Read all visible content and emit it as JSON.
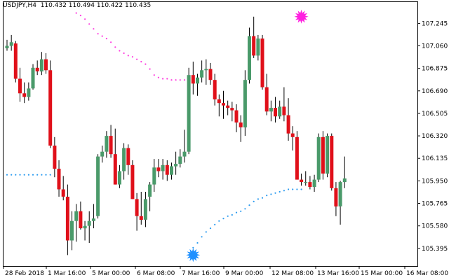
{
  "header": {
    "symbol": "USDJPY,H4",
    "open": "110.432",
    "high": "110.494",
    "low": "110.422",
    "close": "110.435"
  },
  "colors": {
    "background": "#ffffff",
    "axis": "#000000",
    "bull_body": "#4a9a6a",
    "bear_body": "#e0101a",
    "upper_channel": "#ff3ce0",
    "lower_channel": "#2d9cf0",
    "upper_marker": "#ff20e0",
    "lower_marker": "#1e90ff"
  },
  "icons": {
    "upper_marker": "star-burst-icon",
    "lower_marker": "star-burst-icon"
  },
  "chart_data": {
    "type": "candlestick",
    "symbol": "USDJPY",
    "timeframe": "H4",
    "ylim": [
      105.25,
      107.42
    ],
    "y_ticks": [
      "107.245",
      "107.060",
      "106.875",
      "106.690",
      "106.505",
      "106.320",
      "106.135",
      "105.950",
      "105.765",
      "105.580",
      "105.395"
    ],
    "x_tick_labels": [
      "28 Feb 2018",
      "1 Mar 16:00",
      "5 Mar 00:00",
      "6 Mar 08:00",
      "7 Mar 16:00",
      "9 Mar 00:00",
      "12 Mar 08:00",
      "13 Mar 16:00",
      "15 Mar 00:00",
      "16 Mar 08:00"
    ],
    "candles": [
      [
        107.04,
        107.11,
        107.02,
        107.06
      ],
      [
        107.06,
        107.15,
        107.02,
        107.09
      ],
      [
        107.08,
        107.1,
        106.76,
        106.79
      ],
      [
        106.79,
        106.88,
        106.6,
        106.67
      ],
      [
        106.67,
        106.76,
        106.59,
        106.64
      ],
      [
        106.64,
        106.76,
        106.61,
        106.71
      ],
      [
        106.71,
        106.91,
        106.7,
        106.88
      ],
      [
        106.88,
        106.94,
        106.82,
        106.85
      ],
      [
        106.85,
        107.01,
        106.82,
        106.95
      ],
      [
        106.95,
        107.0,
        106.83,
        106.86
      ],
      [
        106.86,
        106.94,
        106.22,
        106.24
      ],
      [
        106.24,
        106.31,
        105.98,
        106.05
      ],
      [
        106.05,
        106.12,
        105.82,
        105.88
      ],
      [
        105.88,
        105.99,
        105.79,
        105.82
      ],
      [
        105.82,
        105.92,
        105.34,
        105.46
      ],
      [
        105.46,
        105.7,
        105.38,
        105.62
      ],
      [
        105.62,
        105.76,
        105.45,
        105.7
      ],
      [
        105.7,
        105.78,
        105.55,
        105.56
      ],
      [
        105.56,
        105.62,
        105.46,
        105.58
      ],
      [
        105.58,
        105.7,
        105.44,
        105.62
      ],
      [
        105.62,
        105.76,
        105.56,
        105.64
      ],
      [
        105.66,
        106.17,
        105.64,
        106.15
      ],
      [
        106.15,
        106.24,
        106.1,
        106.19
      ],
      [
        106.19,
        106.36,
        106.14,
        106.32
      ],
      [
        106.32,
        106.41,
        106.14,
        106.17
      ],
      [
        106.17,
        106.38,
        105.92,
        105.92
      ],
      [
        105.92,
        106.08,
        105.89,
        106.03
      ],
      [
        106.03,
        106.26,
        105.96,
        106.22
      ],
      [
        106.22,
        106.25,
        106.0,
        106.08
      ],
      [
        106.08,
        106.12,
        105.8,
        105.8
      ],
      [
        105.8,
        105.85,
        105.54,
        105.66
      ],
      [
        105.66,
        105.86,
        105.59,
        105.63
      ],
      [
        105.63,
        105.86,
        105.57,
        105.8
      ],
      [
        105.82,
        105.94,
        105.7,
        105.92
      ],
      [
        105.92,
        106.13,
        105.86,
        106.06
      ],
      [
        106.06,
        106.13,
        105.98,
        106.03
      ],
      [
        106.03,
        106.13,
        105.96,
        106.08
      ],
      [
        106.08,
        106.12,
        105.95,
        106.0
      ],
      [
        106.0,
        106.1,
        105.96,
        106.07
      ],
      [
        106.07,
        106.19,
        106.0,
        106.09
      ],
      [
        106.09,
        106.21,
        106.06,
        106.15
      ],
      [
        106.15,
        106.37,
        106.1,
        106.19
      ],
      [
        106.19,
        106.88,
        106.17,
        106.82
      ],
      [
        106.82,
        106.93,
        106.66,
        106.75
      ],
      [
        106.75,
        106.83,
        106.65,
        106.8
      ],
      [
        106.8,
        106.94,
        106.76,
        106.86
      ],
      [
        106.86,
        106.95,
        106.74,
        106.87
      ],
      [
        106.87,
        106.92,
        106.74,
        106.78
      ],
      [
        106.78,
        106.83,
        106.57,
        106.62
      ],
      [
        106.62,
        106.66,
        106.48,
        106.59
      ],
      [
        106.59,
        106.69,
        106.46,
        106.57
      ],
      [
        106.57,
        106.61,
        106.49,
        106.55
      ],
      [
        106.55,
        106.6,
        106.44,
        106.53
      ],
      [
        106.53,
        106.58,
        106.35,
        106.43
      ],
      [
        106.43,
        106.49,
        106.27,
        106.39
      ],
      [
        106.39,
        106.86,
        106.32,
        106.78
      ],
      [
        106.78,
        107.21,
        106.75,
        107.14
      ],
      [
        107.14,
        107.3,
        106.96,
        106.98
      ],
      [
        106.98,
        107.15,
        106.94,
        107.12
      ],
      [
        107.12,
        107.15,
        106.7,
        106.72
      ],
      [
        106.72,
        106.83,
        106.49,
        106.52
      ],
      [
        106.52,
        106.61,
        106.44,
        106.55
      ],
      [
        106.55,
        106.64,
        106.43,
        106.48
      ],
      [
        106.48,
        106.61,
        106.46,
        106.56
      ],
      [
        106.56,
        106.72,
        106.44,
        106.49
      ],
      [
        106.49,
        106.63,
        106.28,
        106.34
      ],
      [
        106.34,
        106.4,
        106.2,
        106.31
      ],
      [
        106.31,
        106.36,
        105.96,
        105.96
      ],
      [
        105.96,
        106.01,
        105.91,
        105.94
      ],
      [
        105.94,
        106.03,
        105.91,
        105.94
      ],
      [
        105.94,
        105.99,
        105.88,
        105.9
      ],
      [
        105.9,
        106.0,
        105.86,
        105.96
      ],
      [
        105.96,
        106.34,
        105.94,
        106.31
      ],
      [
        106.31,
        106.36,
        105.96,
        106.01
      ],
      [
        106.01,
        106.34,
        105.98,
        106.32
      ],
      [
        106.32,
        106.34,
        105.87,
        105.89
      ],
      [
        105.89,
        105.94,
        105.66,
        105.74
      ],
      [
        105.74,
        105.95,
        105.59,
        105.94
      ],
      [
        105.94,
        106.15,
        105.89,
        105.97
      ]
    ],
    "upper_channel": [
      [
        16,
        107.33
      ],
      [
        17,
        107.31
      ],
      [
        18,
        107.28
      ],
      [
        19,
        107.24
      ],
      [
        20,
        107.2
      ],
      [
        21,
        107.16
      ],
      [
        22,
        107.14
      ],
      [
        23,
        107.12
      ],
      [
        24,
        107.09
      ],
      [
        25,
        107.05
      ],
      [
        26,
        107.02
      ],
      [
        27,
        107.0
      ],
      [
        28,
        106.98
      ],
      [
        29,
        106.97
      ],
      [
        30,
        106.95
      ],
      [
        31,
        106.93
      ],
      [
        32,
        106.91
      ],
      [
        33,
        106.87
      ],
      [
        34,
        106.82
      ],
      [
        35,
        106.8
      ],
      [
        36,
        106.79
      ],
      [
        37,
        106.79
      ],
      [
        38,
        106.78
      ],
      [
        39,
        106.78
      ],
      [
        40,
        106.78
      ],
      [
        41,
        106.78
      ],
      [
        42,
        106.78
      ]
    ],
    "lower_channel": [
      [
        0,
        106.0
      ],
      [
        1,
        106.0
      ],
      [
        2,
        106.0
      ],
      [
        3,
        106.0
      ],
      [
        4,
        106.0
      ],
      [
        5,
        106.0
      ],
      [
        6,
        106.0
      ],
      [
        7,
        106.0
      ],
      [
        8,
        106.0
      ],
      [
        9,
        106.0
      ],
      [
        10,
        106.0
      ],
      [
        43,
        105.4
      ],
      [
        44,
        105.44
      ],
      [
        45,
        105.49
      ],
      [
        46,
        105.53
      ],
      [
        47,
        105.56
      ],
      [
        48,
        105.59
      ],
      [
        49,
        105.62
      ],
      [
        50,
        105.64
      ],
      [
        51,
        105.66
      ],
      [
        52,
        105.67
      ],
      [
        53,
        105.69
      ],
      [
        54,
        105.7
      ],
      [
        55,
        105.72
      ],
      [
        56,
        105.75
      ],
      [
        57,
        105.78
      ],
      [
        58,
        105.8
      ],
      [
        59,
        105.81
      ],
      [
        60,
        105.83
      ],
      [
        61,
        105.84
      ],
      [
        62,
        105.85
      ],
      [
        63,
        105.86
      ],
      [
        64,
        105.87
      ],
      [
        65,
        105.88
      ],
      [
        66,
        105.88
      ],
      [
        67,
        105.88
      ],
      [
        68,
        105.88
      ]
    ],
    "upper_marker": [
      68,
      107.3
    ],
    "lower_marker": [
      43,
      105.34
    ]
  }
}
